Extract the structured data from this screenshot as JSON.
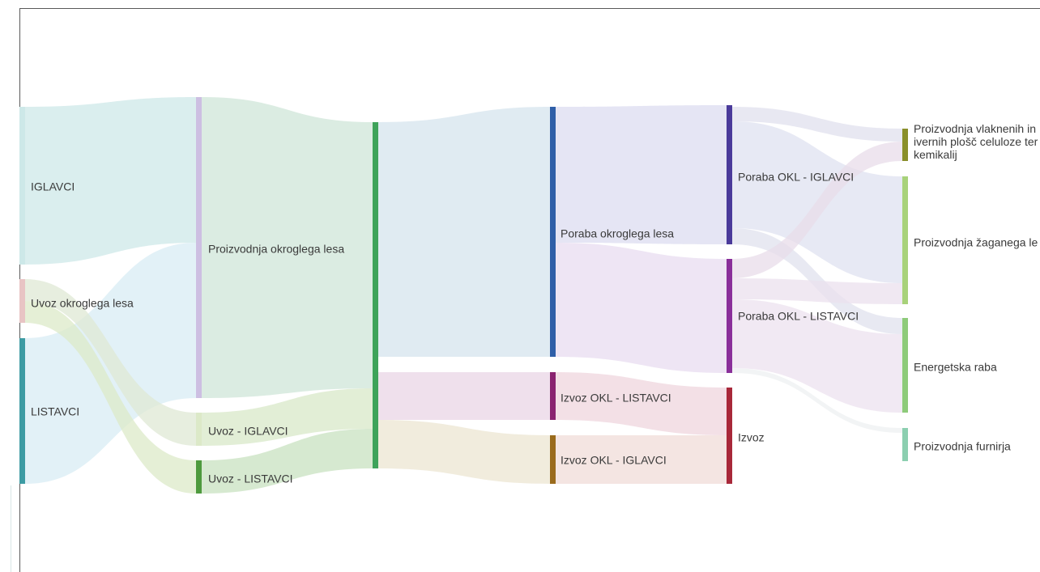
{
  "diagram": {
    "type": "sankey",
    "nodes": [
      {
        "id": "iglavci",
        "label": "IGLAVCI",
        "color": "#cde8e8"
      },
      {
        "id": "uvoz_okl",
        "label": "Uvoz okroglega lesa",
        "color": "#e8c4c4"
      },
      {
        "id": "listavci",
        "label": "LISTAVCI",
        "color": "#3d9ba3"
      },
      {
        "id": "proizvodnja_okl",
        "label": "Proizvodnja okroglega lesa",
        "color": "#cdbfe2"
      },
      {
        "id": "uvoz_iglavci",
        "label": "Uvoz - IGLAVCI",
        "color": "#dce9c8"
      },
      {
        "id": "uvoz_listavci",
        "label": "Uvoz - LISTAVCI",
        "color": "#4e9a3e"
      },
      {
        "id": "skupaj",
        "label": "",
        "color": "#3ea35a"
      },
      {
        "id": "poraba_okl",
        "label": "Poraba okroglega lesa",
        "color": "#2f5fa8"
      },
      {
        "id": "izvoz_okl_listavci",
        "label": "Izvoz OKL - LISTAVCI",
        "color": "#8a2370"
      },
      {
        "id": "izvoz_okl_iglavci",
        "label": "Izvoz OKL - IGLAVCI",
        "color": "#9a6b1c"
      },
      {
        "id": "poraba_okl_iglavci",
        "label": "Poraba OKL - IGLAVCI",
        "color": "#4a3a9a"
      },
      {
        "id": "poraba_okl_listavci",
        "label": "Poraba OKL - LISTAVCI",
        "color": "#8a2f9a"
      },
      {
        "id": "izvoz",
        "label": "Izvoz",
        "color": "#a8283a"
      },
      {
        "id": "vlaknene",
        "label": "Proizvodnja vlaknenih in ivernih plošč celuloze ter kemikalij",
        "color": "#8a8f2a"
      },
      {
        "id": "zagan",
        "label": "Proizvodnja žaganega le",
        "color": "#a8d27a"
      },
      {
        "id": "energetska",
        "label": "Energetska raba",
        "color": "#8ecb7a"
      },
      {
        "id": "furnir",
        "label": "Proizvodnja furnirja",
        "color": "#8ccfb0"
      }
    ],
    "links": [
      {
        "source": "iglavci",
        "target": "proizvodnja_okl",
        "color": "#cde8e8"
      },
      {
        "source": "listavci",
        "target": "proizvodnja_okl",
        "color": "#d8ecf4"
      },
      {
        "source": "uvoz_okl",
        "target": "uvoz_iglavci",
        "color": "#dfe8d4"
      },
      {
        "source": "uvoz_okl",
        "target": "uvoz_listavci",
        "color": "#dce9c8"
      },
      {
        "source": "proizvodnja_okl",
        "target": "skupaj",
        "color": "#cfe6d8"
      },
      {
        "source": "uvoz_iglavci",
        "target": "skupaj",
        "color": "#d8e8c8"
      },
      {
        "source": "uvoz_listavci",
        "target": "skupaj",
        "color": "#c8e2c0"
      },
      {
        "source": "skupaj",
        "target": "poraba_okl",
        "color": "#d6e4ee"
      },
      {
        "source": "skupaj",
        "target": "izvoz_okl_listavci",
        "color": "#ead6e6"
      },
      {
        "source": "skupaj",
        "target": "izvoz_okl_iglavci",
        "color": "#ece6d2"
      },
      {
        "source": "poraba_okl",
        "target": "poraba_okl_iglavci",
        "color": "#dcdcf0"
      },
      {
        "source": "poraba_okl",
        "target": "poraba_okl_listavci",
        "color": "#e8dcf0"
      },
      {
        "source": "izvoz_okl_listavci",
        "target": "izvoz",
        "color": "#efd6de"
      },
      {
        "source": "izvoz_okl_iglavci",
        "target": "izvoz",
        "color": "#f0dcd8"
      },
      {
        "source": "poraba_okl_iglavci",
        "target": "vlaknene",
        "color": "#e0e0ee"
      },
      {
        "source": "poraba_okl_iglavci",
        "target": "zagan",
        "color": "#dfe2f0"
      },
      {
        "source": "poraba_okl_iglavci",
        "target": "energetska",
        "color": "#e0e2ee"
      },
      {
        "source": "poraba_okl_listavci",
        "target": "vlaknene",
        "color": "#e8dcea"
      },
      {
        "source": "poraba_okl_listavci",
        "target": "zagan",
        "color": "#ebe0ee"
      },
      {
        "source": "poraba_okl_listavci",
        "target": "energetska",
        "color": "#ece2ef"
      },
      {
        "source": "poraba_okl_listavci",
        "target": "furnir",
        "color": "#eef0f2"
      }
    ]
  }
}
